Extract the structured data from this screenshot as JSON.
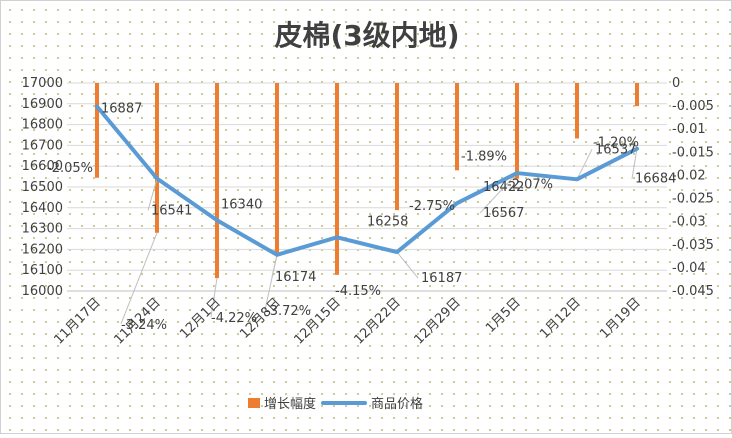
{
  "chart_data": {
    "type": "bar+line",
    "title": "皮棉(3级内地)",
    "categories": [
      "11月17日",
      "11月24日",
      "12月1日",
      "12月8日",
      "12月15日",
      "12月22日",
      "12月29日",
      "1月5日",
      "1月12日",
      "1月19日"
    ],
    "series": [
      {
        "name": "增长幅度",
        "type": "bar",
        "axis": "right",
        "color": "#ED7D31",
        "values": [
          -0.0205,
          -0.0324,
          -0.0422,
          -0.0372,
          -0.0415,
          -0.0275,
          -0.0189,
          -0.0207,
          -0.012,
          -0.005
        ],
        "labels": [
          "-2.05%",
          "-3.24%",
          "-4.22%",
          "-3.72%",
          "-4.15%",
          "-2.75%",
          "-1.89%",
          "-2.07%",
          "-1.20%",
          ""
        ]
      },
      {
        "name": "商品价格",
        "type": "line",
        "axis": "left",
        "color": "#5B9BD5",
        "values": [
          16887,
          16541,
          16340,
          16174,
          16258,
          16187,
          16422,
          16567,
          16537,
          16684
        ],
        "labels": [
          "16887",
          "16541",
          "16340",
          "16174",
          "16258",
          "16187",
          "16422",
          "16567",
          "16537",
          "16684"
        ]
      }
    ],
    "y_left": {
      "min": 16000,
      "max": 17000,
      "step": 100,
      "ticks": [
        "17000",
        "16900",
        "16800",
        "16700",
        "16600",
        "16500",
        "16400",
        "16300",
        "16200",
        "16100",
        "16000"
      ]
    },
    "y_right": {
      "min": -0.045,
      "max": 0,
      "ticks": [
        "0",
        "-0.005",
        "-0.01",
        "-0.015",
        "-0.02",
        "-0.025",
        "-0.03",
        "-0.035",
        "-0.04",
        "-0.045"
      ]
    },
    "grid": true,
    "legend_position": "bottom"
  }
}
